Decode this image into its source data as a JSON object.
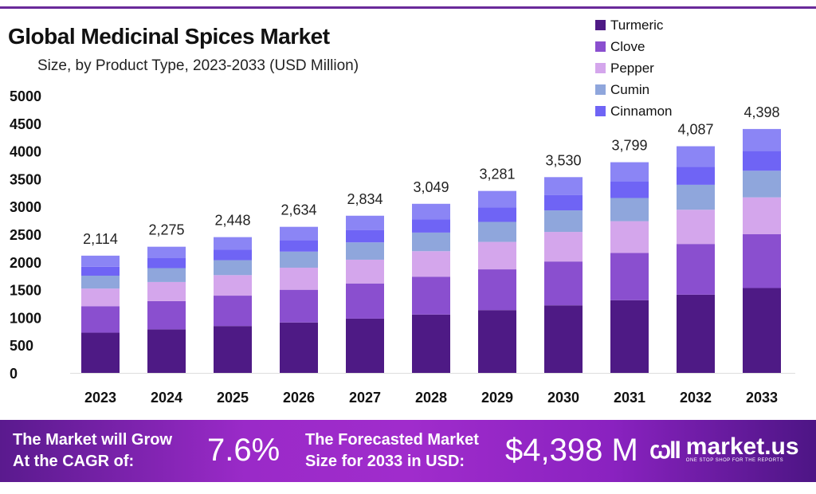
{
  "chart_data": {
    "type": "bar",
    "stacked": true,
    "title": "Global Medicinal Spices Market",
    "subtitle": "Size, by Product Type, 2023-2033 (USD Million)",
    "categories": [
      "2023",
      "2024",
      "2025",
      "2026",
      "2027",
      "2028",
      "2029",
      "2030",
      "2031",
      "2032",
      "2033"
    ],
    "totals_labels": [
      "2,114",
      "2,275",
      "2,448",
      "2,634",
      "2,834",
      "3,049",
      "3,281",
      "3,530",
      "3,799",
      "4,087",
      "4,398"
    ],
    "yticks": [
      "0",
      "500",
      "1000",
      "1500",
      "2000",
      "2500",
      "3000",
      "3500",
      "4000",
      "4500",
      "5000"
    ],
    "ylim": [
      0,
      5000
    ],
    "grid": false,
    "legend_position": "top-right",
    "series": [
      {
        "name": "Turmeric",
        "color": "#4e1a85",
        "values": [
          725,
          785,
          845,
          909,
          978,
          1052,
          1132,
          1218,
          1311,
          1410,
          1530
        ]
      },
      {
        "name": "Clove",
        "color": "#8a4fcf",
        "values": [
          478,
          510,
          548,
          590,
          635,
          683,
          735,
          791,
          851,
          915,
          970
        ]
      },
      {
        "name": "Pepper",
        "color": "#d4a6ec",
        "values": [
          318,
          344,
          370,
          398,
          428,
          460,
          495,
          533,
          574,
          617,
          665
        ]
      },
      {
        "name": "Cumin",
        "color": "#8fa6dc",
        "values": [
          232,
          250,
          269,
          290,
          312,
          335,
          361,
          388,
          418,
          450,
          480
        ]
      },
      {
        "name": "Cinnamon",
        "color": "#6f64f5",
        "values": [
          160,
          180,
          193,
          208,
          224,
          241,
          259,
          279,
          300,
          323,
          360
        ]
      },
      {
        "color": "#8b85f5",
        "values": [
          201,
          206,
          223,
          239,
          257,
          278,
          299,
          321,
          345,
          372,
          393
        ]
      }
    ]
  },
  "banner": {
    "cagr_text_1": "The Market will Grow",
    "cagr_text_2": "At the CAGR of:",
    "cagr_value": "7.6%",
    "forecast_text_1": "The Forecasted Market",
    "forecast_text_2": "Size for 2033 in USD:",
    "forecast_value": "$4,398 M",
    "brand": "market.us",
    "brand_tagline": "ONE STOP SHOP FOR THE REPORTS"
  }
}
